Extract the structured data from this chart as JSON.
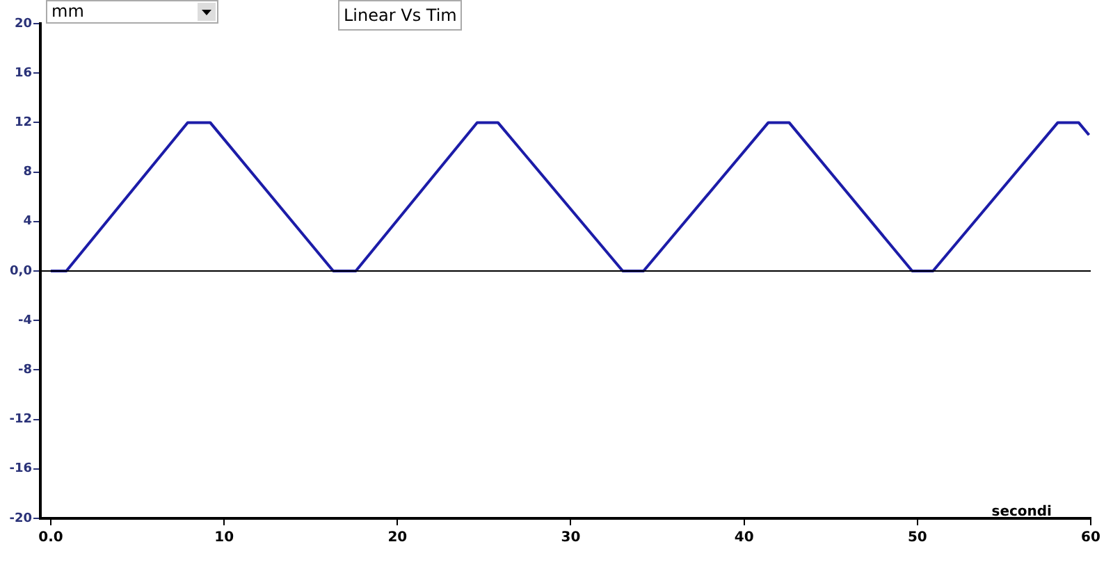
{
  "chart_data": {
    "type": "line",
    "title": "Linear Vs Tim",
    "ylabel": "mm",
    "xlabel": "secondi",
    "x": [
      0,
      0.9,
      7.9,
      9.2,
      16.3,
      17.6,
      24.6,
      25.8,
      33.0,
      34.2,
      41.4,
      42.6,
      49.7,
      50.9,
      58.1,
      59.3,
      59.9
    ],
    "series": [
      {
        "color": "#1c1ca8",
        "values": [
          0,
          0,
          12,
          12,
          0,
          0,
          12,
          12,
          0,
          0,
          12,
          12,
          0,
          0,
          12,
          12,
          11
        ]
      }
    ],
    "xlim": [
      -0.6,
      60
    ],
    "xticks": [
      {
        "value": 0,
        "label": "0.0"
      },
      10,
      20,
      30,
      40,
      50,
      60
    ],
    "ylim": [
      -20,
      20
    ],
    "yticks": [
      -20,
      -16,
      -12,
      -8,
      -4,
      {
        "value": 0,
        "label": "0,0"
      },
      4,
      8,
      12,
      16,
      20
    ],
    "ref_lines": [
      {
        "axis": "y",
        "value": 0,
        "color": "#000000"
      }
    ],
    "grid": false,
    "legend": false,
    "marker": "none",
    "line_style": "solid"
  }
}
